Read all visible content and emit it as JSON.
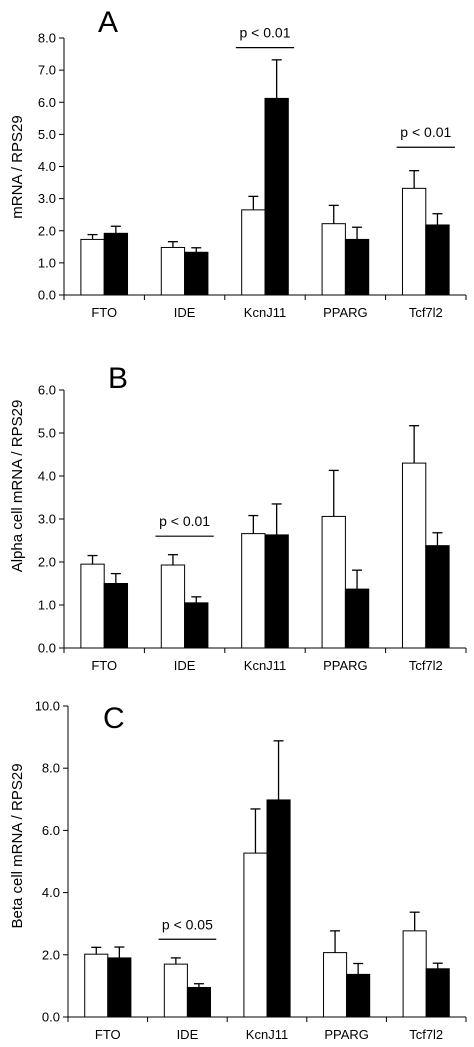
{
  "chart_data": [
    {
      "type": "bar",
      "panel_label": "A",
      "ylabel": "mRNA / RPS29",
      "ylim": [
        0,
        8
      ],
      "ytick_step": 1,
      "ytick_labels": [
        "0.0",
        "1.0",
        "2.0",
        "3.0",
        "4.0",
        "5.0",
        "6.0",
        "7.0",
        "8.0"
      ],
      "categories": [
        "FTO",
        "IDE",
        "KcnJ11",
        "PPARG",
        "Tcf7l2"
      ],
      "series": [
        {
          "fill": "#ffffff",
          "values": [
            1.73,
            1.48,
            2.65,
            2.22,
            3.32
          ],
          "errors": [
            0.15,
            0.18,
            0.42,
            0.57,
            0.55
          ]
        },
        {
          "fill": "#000000",
          "values": [
            1.92,
            1.33,
            6.12,
            1.73,
            2.18
          ],
          "errors": [
            0.22,
            0.14,
            1.2,
            0.38,
            0.35
          ]
        }
      ],
      "annotations": [
        {
          "text": "p < 0.01",
          "category_index": 2,
          "y": 7.7
        },
        {
          "text": "p < 0.01",
          "category_index": 4,
          "y": 4.6
        }
      ]
    },
    {
      "type": "bar",
      "panel_label": "B",
      "ylabel": "Alpha cell mRNA / RPS29",
      "ylim": [
        0,
        6
      ],
      "ytick_step": 1,
      "ytick_labels": [
        "0.0",
        "1.0",
        "2.0",
        "3.0",
        "4.0",
        "5.0",
        "6.0"
      ],
      "categories": [
        "FTO",
        "IDE",
        "KcnJ11",
        "PPARG",
        "Tcf7l2"
      ],
      "series": [
        {
          "fill": "#ffffff",
          "values": [
            1.95,
            1.93,
            2.66,
            3.06,
            4.3
          ],
          "errors": [
            0.2,
            0.24,
            0.42,
            1.07,
            0.87
          ]
        },
        {
          "fill": "#000000",
          "values": [
            1.5,
            1.05,
            2.63,
            1.37,
            2.38
          ],
          "errors": [
            0.23,
            0.14,
            0.72,
            0.44,
            0.3
          ]
        }
      ],
      "annotations": [
        {
          "text": "p < 0.01",
          "category_index": 1,
          "y": 2.6
        }
      ]
    },
    {
      "type": "bar",
      "panel_label": "C",
      "ylabel": "Beta cell mRNA / RPS29",
      "ylim": [
        0,
        10
      ],
      "ytick_step": 2,
      "ytick_labels": [
        "0.0",
        "2.0",
        "4.0",
        "6.0",
        "8.0",
        "10.0"
      ],
      "categories": [
        "FTO",
        "IDE",
        "KcnJ11",
        "PPARG",
        "Tcf7l2"
      ],
      "series": [
        {
          "fill": "#ffffff",
          "values": [
            2.02,
            1.7,
            5.27,
            2.07,
            2.77
          ],
          "errors": [
            0.22,
            0.2,
            1.42,
            0.7,
            0.6
          ]
        },
        {
          "fill": "#000000",
          "values": [
            1.9,
            0.95,
            6.98,
            1.37,
            1.55
          ],
          "errors": [
            0.35,
            0.12,
            1.9,
            0.35,
            0.18
          ]
        }
      ],
      "annotations": [
        {
          "text": "p < 0.05",
          "category_index": 1,
          "y": 2.5
        }
      ]
    }
  ]
}
